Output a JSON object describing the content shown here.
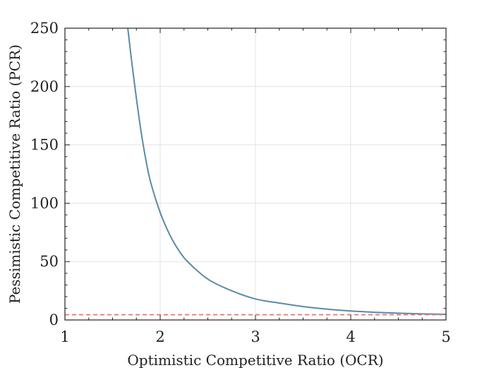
{
  "chart_data": {
    "type": "line",
    "title": "",
    "xlabel": "Optimistic Competitive Ratio (OCR)",
    "ylabel": "Pessimistic Competitive Ratio (PCR)",
    "xlim": [
      1,
      5
    ],
    "ylim": [
      0,
      250
    ],
    "xticks": [
      1,
      2,
      3,
      4,
      5
    ],
    "yticks": [
      0,
      50,
      100,
      150,
      200,
      250
    ],
    "xtick_labels": [
      "1",
      "2",
      "3",
      "4",
      "5"
    ],
    "ytick_labels": [
      "0",
      "50",
      "100",
      "150",
      "200",
      "250"
    ],
    "grid": true,
    "series": [
      {
        "style": "solid",
        "color": "#5b8aa6",
        "x": [
          1.66,
          1.7,
          1.75,
          1.8,
          1.85,
          1.9,
          2.0,
          2.1,
          2.2,
          2.3,
          2.5,
          2.75,
          3.0,
          3.25,
          3.5,
          3.75,
          4.0,
          4.25,
          4.5,
          4.75,
          5.0
        ],
        "y": [
          250,
          222,
          190,
          161,
          137,
          118,
          92,
          73,
          59,
          49,
          35,
          25,
          18,
          14.5,
          11.5,
          9.3,
          7.7,
          6.6,
          5.8,
          5.2,
          4.8
        ]
      },
      {
        "style": "dashed",
        "color": "#d9827f",
        "x": [
          1,
          5
        ],
        "y": [
          4.5,
          4.5
        ]
      }
    ]
  }
}
